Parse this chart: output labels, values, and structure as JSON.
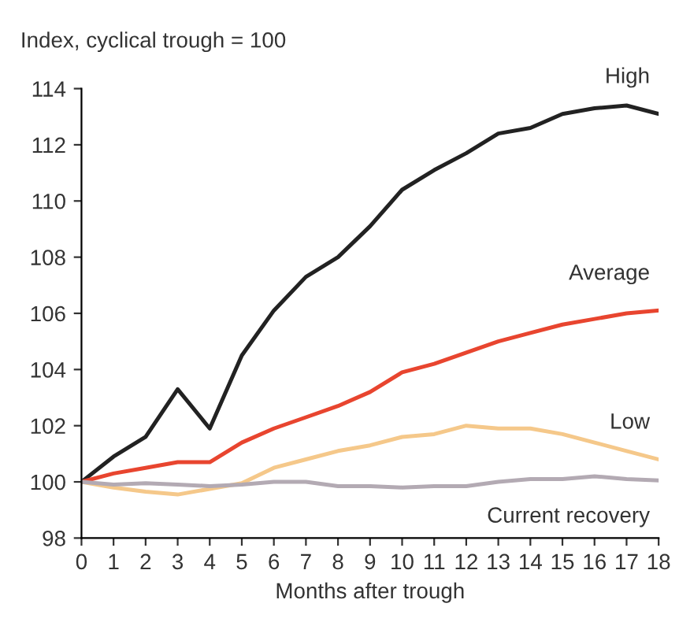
{
  "chart_data": {
    "type": "line",
    "ylabel": "Index, cyclical trough = 100",
    "xlabel": "Months after trough",
    "x": [
      0,
      1,
      2,
      3,
      4,
      5,
      6,
      7,
      8,
      9,
      10,
      11,
      12,
      13,
      14,
      15,
      16,
      17,
      18
    ],
    "series": [
      {
        "name": "High",
        "color": "#222222",
        "values": [
          100,
          100.9,
          101.6,
          103.3,
          101.9,
          104.5,
          106.1,
          107.3,
          108.0,
          109.1,
          110.4,
          111.1,
          111.7,
          112.4,
          112.6,
          113.1,
          113.3,
          113.4,
          113.1
        ]
      },
      {
        "name": "Average",
        "color": "#e8452f",
        "values": [
          100,
          100.3,
          100.5,
          100.7,
          100.7,
          101.4,
          101.9,
          102.3,
          102.7,
          103.2,
          103.9,
          104.2,
          104.6,
          105.0,
          105.3,
          105.6,
          105.8,
          106.0,
          106.1
        ]
      },
      {
        "name": "Low",
        "color": "#f5c88a",
        "values": [
          100,
          99.8,
          99.65,
          99.55,
          99.75,
          99.95,
          100.5,
          100.8,
          101.1,
          101.3,
          101.6,
          101.7,
          102.0,
          101.9,
          101.9,
          101.7,
          101.4,
          101.1,
          100.8
        ]
      },
      {
        "name": "Current recovery",
        "color": "#b3aab3",
        "values": [
          100,
          99.9,
          99.95,
          99.9,
          99.85,
          99.9,
          100.0,
          100.0,
          99.85,
          99.85,
          99.8,
          99.85,
          99.85,
          100.0,
          100.1,
          100.1,
          100.2,
          100.1,
          100.05
        ]
      }
    ],
    "xlim": [
      0,
      18
    ],
    "xticks": [
      0,
      1,
      2,
      3,
      4,
      5,
      6,
      7,
      8,
      9,
      10,
      11,
      12,
      13,
      14,
      15,
      16,
      17,
      18
    ],
    "ylim": [
      98,
      114
    ],
    "yticks": [
      98,
      100,
      102,
      104,
      106,
      108,
      110,
      112,
      114
    ],
    "grid": false,
    "legend": false,
    "marker": "none",
    "line_style": "solid"
  }
}
